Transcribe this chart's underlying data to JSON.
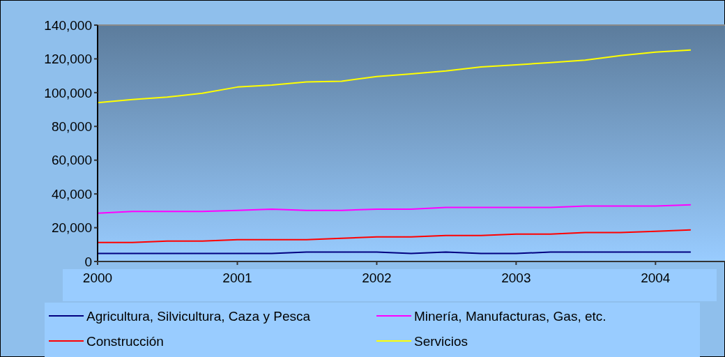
{
  "chart_data": {
    "type": "line",
    "x": [
      "2000-01",
      "2000-04",
      "2000-07",
      "2000-10",
      "2001-01",
      "2001-04",
      "2001-07",
      "2001-10",
      "2002-01",
      "2002-04",
      "2002-07",
      "2002-10",
      "2003-01",
      "2003-04",
      "2003-07",
      "2003-10",
      "2004-01",
      "2004-04"
    ],
    "series": [
      {
        "name": "Agricultura, Silvicultura, Caza y Pesca",
        "color": "#000080",
        "values": [
          4700,
          4700,
          4700,
          4700,
          4700,
          4700,
          5600,
          5600,
          5600,
          4700,
          5600,
          4700,
          4700,
          5600,
          5600,
          5600,
          5600,
          5600
        ]
      },
      {
        "name": "Minería, Manufacturas, Gas, etc.",
        "color": "#ff00ff",
        "values": [
          28600,
          29600,
          29600,
          29600,
          30300,
          31000,
          30300,
          30300,
          31000,
          31000,
          32000,
          32000,
          32000,
          32000,
          32800,
          32800,
          32800,
          33600
        ]
      },
      {
        "name": "Construcción",
        "color": "#ff0000",
        "values": [
          11300,
          11300,
          12100,
          12100,
          12900,
          12900,
          12900,
          13700,
          14600,
          14600,
          15400,
          15400,
          16200,
          16200,
          17100,
          17100,
          17900,
          18700
        ]
      },
      {
        "name": "Servicios",
        "color": "#ffff00",
        "values": [
          94100,
          95900,
          97400,
          99600,
          103300,
          104500,
          106300,
          106800,
          109500,
          111100,
          112800,
          115200,
          116500,
          117800,
          119200,
          121900,
          124000,
          125200
        ]
      }
    ],
    "xlim": [
      "2000-01",
      "2004-07"
    ],
    "xticks": [
      "2000",
      "2001",
      "2002",
      "2003",
      "2004"
    ],
    "ylim": [
      0,
      140000
    ],
    "yticks": [
      {
        "value": 0,
        "label": "0"
      },
      {
        "value": 20000,
        "label": "20,000"
      },
      {
        "value": 40000,
        "label": "40,000"
      },
      {
        "value": 60000,
        "label": "60,000"
      },
      {
        "value": 80000,
        "label": "80,000"
      },
      {
        "value": 100000,
        "label": "100,000"
      },
      {
        "value": 120000,
        "label": "120,000"
      },
      {
        "value": 140000,
        "label": "140,000"
      }
    ],
    "legend": "bottom"
  }
}
